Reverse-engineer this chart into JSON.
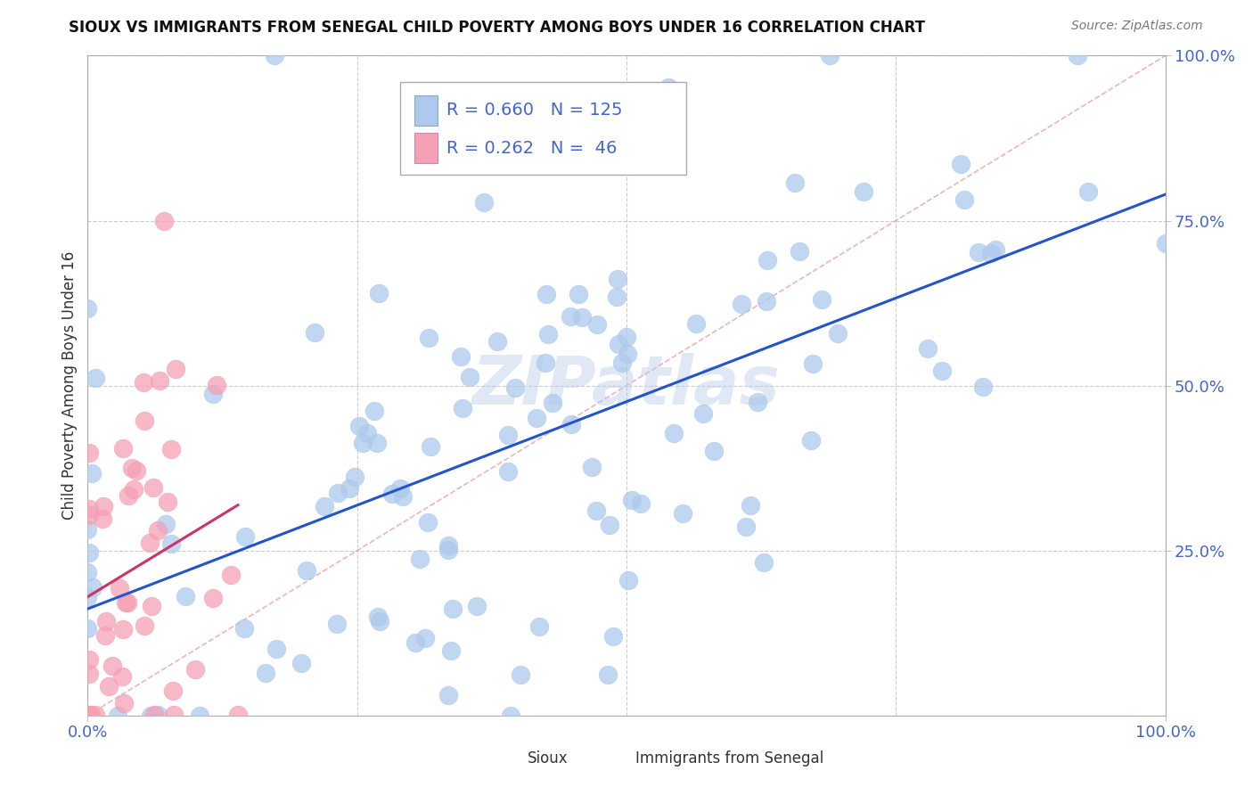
{
  "title": "SIOUX VS IMMIGRANTS FROM SENEGAL CHILD POVERTY AMONG BOYS UNDER 16 CORRELATION CHART",
  "source": "Source: ZipAtlas.com",
  "ylabel": "Child Poverty Among Boys Under 16",
  "xlim": [
    0.0,
    1.0
  ],
  "ylim": [
    0.0,
    1.0
  ],
  "sioux_color": "#adc9ed",
  "senegal_color": "#f5a0b5",
  "sioux_R": 0.66,
  "sioux_N": 125,
  "senegal_R": 0.262,
  "senegal_N": 46,
  "regression_color_sioux": "#2255cc",
  "regression_color_senegal": "#cc3366",
  "watermark": "ZIPatlas",
  "legend_label_sioux": "Sioux",
  "legend_label_senegal": "Immigrants from Senegal",
  "background_color": "#ffffff",
  "grid_color": "#cccccc",
  "title_color": "#111111",
  "tick_color": "#4466cc",
  "ref_line_color": "#e8a0b0"
}
